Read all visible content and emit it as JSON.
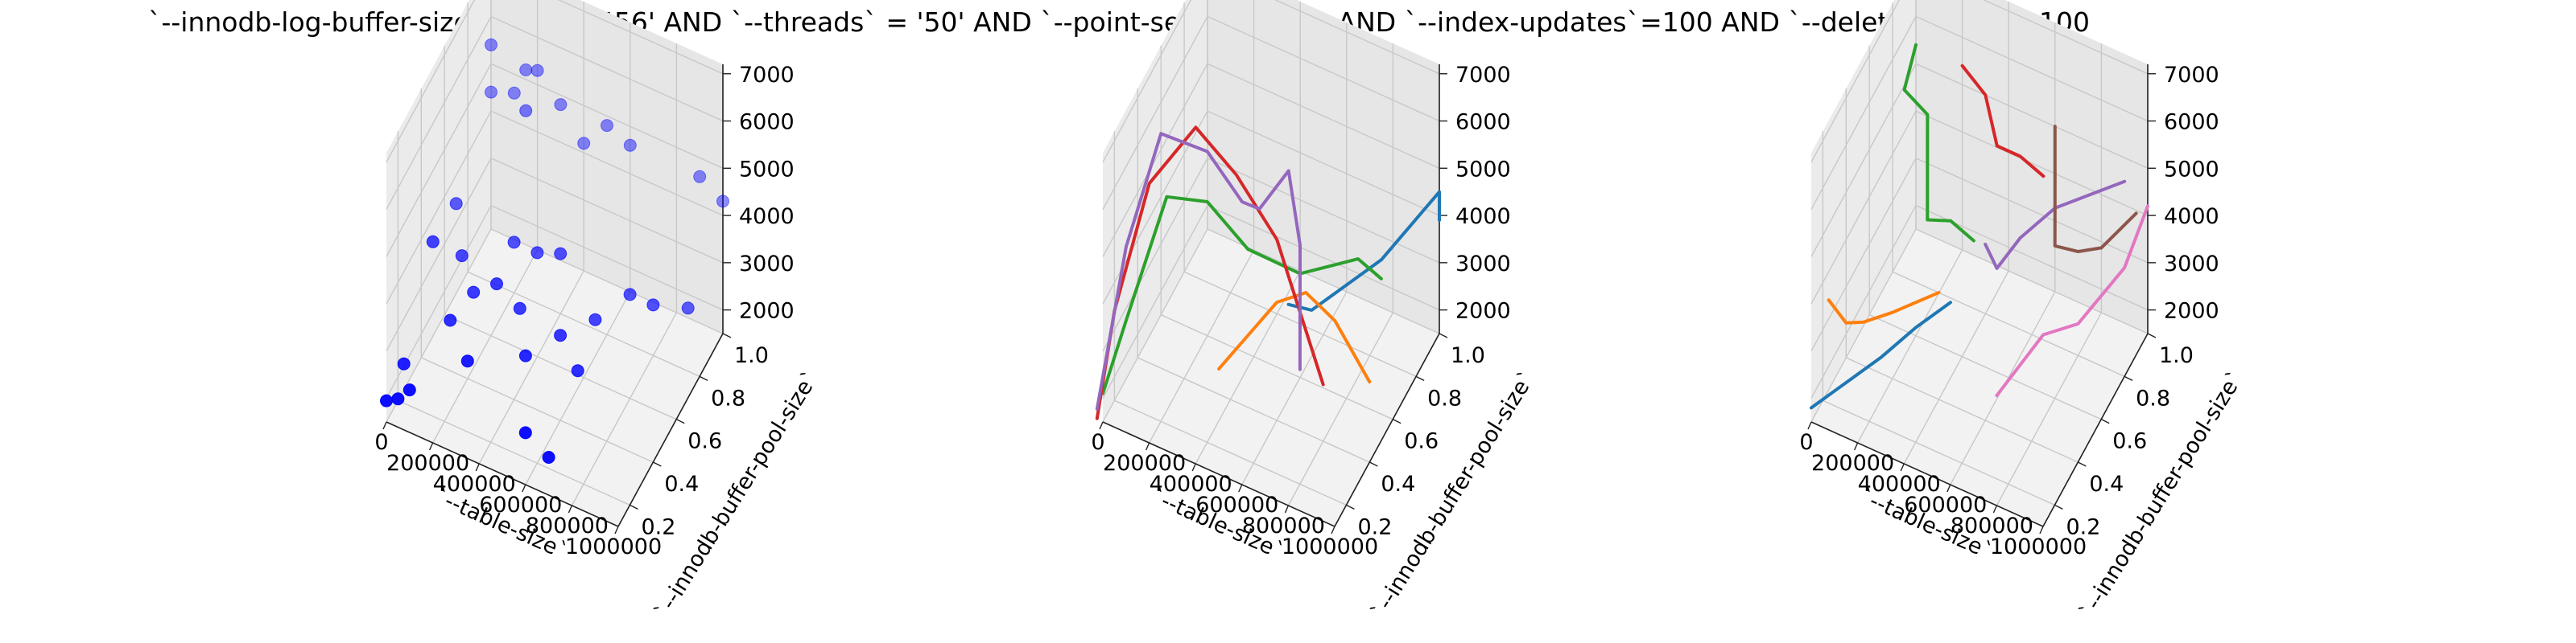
{
  "title": "`--innodb-log-buffer-size` = '6291456' AND `--threads` = '50'  AND `--point-selects`=100 AND `--index-updates`=100 AND `--delete-inserts`=100",
  "chart_data": [
    {
      "type": "scatter",
      "projection": "3d",
      "xlabel": "`--table-size`",
      "ylabel": "`--innodb-buffer-pool-size`",
      "zlabel": "",
      "xlim": [
        0,
        1000000
      ],
      "ylim": [
        0.1,
        1.0
      ],
      "zlim": [
        1500,
        7200
      ],
      "xticks": [
        "0",
        "200000",
        "400000",
        "600000",
        "800000",
        "1000000"
      ],
      "yticks": [
        "0.2",
        "0.4",
        "0.6",
        "0.8",
        "1.0"
      ],
      "zticks": [
        "2000",
        "3000",
        "4000",
        "5000",
        "6000",
        "7000"
      ],
      "grid": true,
      "series": [
        {
          "color": "#0000ff",
          "points": [
            {
              "x": 0,
              "y": 0.1,
              "z": 1950
            },
            {
              "x": 0,
              "y": 0.25,
              "z": 2050
            },
            {
              "x": 0,
              "y": 0.5,
              "z": 3500
            },
            {
              "x": 0,
              "y": 0.7,
              "z": 3400
            },
            {
              "x": 0,
              "y": 1.0,
              "z": 5400
            },
            {
              "x": 0,
              "y": 1.0,
              "z": 4400
            },
            {
              "x": 50000,
              "y": 0.1,
              "z": 2100
            },
            {
              "x": 100000,
              "y": 0.1,
              "z": 2400
            },
            {
              "x": 100000,
              "y": 0.55,
              "z": 3200
            },
            {
              "x": 100000,
              "y": 1.0,
              "z": 4600
            },
            {
              "x": 150000,
              "y": 0.35,
              "z": 2850
            },
            {
              "x": 150000,
              "y": 1.0,
              "z": 5200
            },
            {
              "x": 200000,
              "y": 0.45,
              "z": 3100
            },
            {
              "x": 200000,
              "y": 1.0,
              "z": 5300
            },
            {
              "x": 200000,
              "y": 0.9,
              "z": 4900
            },
            {
              "x": 300000,
              "y": 0.2,
              "z": 3000
            },
            {
              "x": 300000,
              "y": 0.45,
              "z": 3500
            },
            {
              "x": 300000,
              "y": 0.6,
              "z": 3700
            },
            {
              "x": 300000,
              "y": 1.0,
              "z": 4800
            },
            {
              "x": 400000,
              "y": 0.45,
              "z": 3200
            },
            {
              "x": 400000,
              "y": 0.6,
              "z": 3700
            },
            {
              "x": 400000,
              "y": 1.0,
              "z": 4200
            },
            {
              "x": 500000,
              "y": 0.3,
              "z": 3100
            },
            {
              "x": 500000,
              "y": 0.6,
              "z": 3900
            },
            {
              "x": 500000,
              "y": 1.0,
              "z": 4800
            },
            {
              "x": 600000,
              "y": 0.1,
              "z": 2600
            },
            {
              "x": 600000,
              "y": 0.4,
              "z": 3300
            },
            {
              "x": 600000,
              "y": 1.0,
              "z": 4600
            },
            {
              "x": 700000,
              "y": 0.1,
              "z": 2300
            },
            {
              "x": 700000,
              "y": 0.35,
              "z": 3000
            },
            {
              "x": 700000,
              "y": 0.5,
              "z": 3400
            },
            {
              "x": 800000,
              "y": 0.6,
              "z": 3700
            },
            {
              "x": 900000,
              "y": 0.6,
              "z": 3700
            },
            {
              "x": 900000,
              "y": 1.0,
              "z": 4600
            },
            {
              "x": 1000000,
              "y": 0.7,
              "z": 3400
            },
            {
              "x": 1000000,
              "y": 1.0,
              "z": 4300
            }
          ]
        }
      ]
    },
    {
      "type": "line",
      "projection": "3d",
      "xlabel": "`--table-size`",
      "ylabel": "`--innodb-buffer-pool-size`",
      "zlabel": "",
      "xlim": [
        0,
        1000000
      ],
      "ylim": [
        0.1,
        1.0
      ],
      "zlim": [
        1500,
        7200
      ],
      "xticks": [
        "0",
        "200000",
        "400000",
        "600000",
        "800000",
        "1000000"
      ],
      "yticks": [
        "0.2",
        "0.4",
        "0.6",
        "0.8",
        "1.0"
      ],
      "zticks": [
        "2000",
        "3000",
        "4000",
        "5000",
        "6000",
        "7000"
      ],
      "grid": true,
      "series": [
        {
          "color": "#1f77b4",
          "points": [
            {
              "x": 600000,
              "y": 0.5,
              "z": 3500
            },
            {
              "x": 700000,
              "y": 0.5,
              "z": 3600
            },
            {
              "x": 800000,
              "y": 0.6,
              "z": 3900
            },
            {
              "x": 900000,
              "y": 0.7,
              "z": 4200
            },
            {
              "x": 1000000,
              "y": 1.0,
              "z": 4500
            },
            {
              "x": 1000000,
              "y": 1.0,
              "z": 3900
            }
          ]
        },
        {
          "color": "#ff7f0e",
          "points": [
            {
              "x": 400000,
              "y": 0.3,
              "z": 2600
            },
            {
              "x": 500000,
              "y": 0.35,
              "z": 3300
            },
            {
              "x": 600000,
              "y": 0.4,
              "z": 4000
            },
            {
              "x": 700000,
              "y": 0.45,
              "z": 4200
            },
            {
              "x": 800000,
              "y": 0.5,
              "z": 3600
            },
            {
              "x": 1000000,
              "y": 0.4,
              "z": 3200
            }
          ]
        },
        {
          "color": "#2ca02c",
          "points": [
            {
              "x": 0,
              "y": 0.1,
              "z": 2100
            },
            {
              "x": 50000,
              "y": 0.2,
              "z": 3300
            },
            {
              "x": 100000,
              "y": 0.45,
              "z": 4900
            },
            {
              "x": 250000,
              "y": 0.5,
              "z": 4900
            },
            {
              "x": 400000,
              "y": 0.55,
              "z": 4000
            },
            {
              "x": 600000,
              "y": 0.6,
              "z": 3700
            },
            {
              "x": 800000,
              "y": 0.7,
              "z": 4000
            },
            {
              "x": 900000,
              "y": 0.7,
              "z": 3800
            }
          ]
        },
        {
          "color": "#d62728",
          "points": [
            {
              "x": 0,
              "y": 0.05,
              "z": 1800
            },
            {
              "x": 0,
              "y": 0.2,
              "z": 3400
            },
            {
              "x": 50000,
              "y": 0.4,
              "z": 5300
            },
            {
              "x": 150000,
              "y": 0.6,
              "z": 5800
            },
            {
              "x": 300000,
              "y": 0.65,
              "z": 4900
            },
            {
              "x": 500000,
              "y": 0.6,
              "z": 4200
            },
            {
              "x": 600000,
              "y": 0.5,
              "z": 4100
            },
            {
              "x": 800000,
              "y": 0.4,
              "z": 2700
            }
          ]
        },
        {
          "color": "#9467bd",
          "points": [
            {
              "x": 0,
              "y": 0.05,
              "z": 2000
            },
            {
              "x": 0,
              "y": 0.3,
              "z": 4300
            },
            {
              "x": 50000,
              "y": 0.5,
              "z": 5900
            },
            {
              "x": 200000,
              "y": 0.6,
              "z": 5400
            },
            {
              "x": 300000,
              "y": 0.7,
              "z": 4100
            },
            {
              "x": 400000,
              "y": 0.65,
              "z": 4400
            },
            {
              "x": 500000,
              "y": 0.7,
              "z": 5200
            },
            {
              "x": 600000,
              "y": 0.6,
              "z": 4300
            },
            {
              "x": 700000,
              "y": 0.4,
              "z": 2800
            }
          ]
        }
      ]
    },
    {
      "type": "line",
      "projection": "3d",
      "xlabel": "`--table-size`",
      "ylabel": "`--innodb-buffer-pool-size`",
      "zlabel": "",
      "xlim": [
        0,
        1000000
      ],
      "ylim": [
        0.1,
        1.0
      ],
      "zlim": [
        1500,
        7200
      ],
      "xticks": [
        "0",
        "200000",
        "400000",
        "600000",
        "800000",
        "1000000"
      ],
      "yticks": [
        "0.2",
        "0.4",
        "0.6",
        "0.8",
        "1.0"
      ],
      "zticks": [
        "2000",
        "3000",
        "4000",
        "5000",
        "6000",
        "7000"
      ],
      "grid": true,
      "series": [
        {
          "color": "#1f77b4",
          "points": [
            {
              "x": 0,
              "y": 0.1,
              "z": 1800
            },
            {
              "x": 100000,
              "y": 0.2,
              "z": 2100
            },
            {
              "x": 200000,
              "y": 0.3,
              "z": 2400
            },
            {
              "x": 300000,
              "y": 0.4,
              "z": 2800
            },
            {
              "x": 400000,
              "y": 0.5,
              "z": 3100
            }
          ]
        },
        {
          "color": "#ff7f0e",
          "points": [
            {
              "x": 0,
              "y": 0.25,
              "z": 3400
            },
            {
              "x": 50000,
              "y": 0.3,
              "z": 2800
            },
            {
              "x": 100000,
              "y": 0.35,
              "z": 2700
            },
            {
              "x": 200000,
              "y": 0.4,
              "z": 2900
            },
            {
              "x": 350000,
              "y": 0.5,
              "z": 3200
            }
          ]
        },
        {
          "color": "#2ca02c",
          "points": [
            {
              "x": 0,
              "y": 1.0,
              "z": 5400
            },
            {
              "x": 0,
              "y": 0.9,
              "z": 4900
            },
            {
              "x": 100000,
              "y": 0.9,
              "z": 4600
            },
            {
              "x": 200000,
              "y": 0.7,
              "z": 3500
            },
            {
              "x": 300000,
              "y": 0.7,
              "z": 3700
            },
            {
              "x": 400000,
              "y": 0.7,
              "z": 3500
            }
          ]
        },
        {
          "color": "#d62728",
          "points": [
            {
              "x": 200000,
              "y": 1.0,
              "z": 5400
            },
            {
              "x": 300000,
              "y": 1.0,
              "z": 5000
            },
            {
              "x": 400000,
              "y": 0.9,
              "z": 4600
            },
            {
              "x": 500000,
              "y": 0.9,
              "z": 4600
            },
            {
              "x": 600000,
              "y": 0.9,
              "z": 4400
            }
          ]
        },
        {
          "color": "#9467bd",
          "points": [
            {
              "x": 500000,
              "y": 0.6,
              "z": 4100
            },
            {
              "x": 550000,
              "y": 0.6,
              "z": 3700
            },
            {
              "x": 600000,
              "y": 0.7,
              "z": 4000
            },
            {
              "x": 700000,
              "y": 0.8,
              "z": 4400
            },
            {
              "x": 900000,
              "y": 1.0,
              "z": 4500
            }
          ]
        },
        {
          "color": "#8c564b",
          "points": [
            {
              "x": 600000,
              "y": 1.0,
              "z": 5000
            },
            {
              "x": 650000,
              "y": 0.9,
              "z": 4000
            },
            {
              "x": 700000,
              "y": 0.8,
              "z": 3600
            },
            {
              "x": 800000,
              "y": 0.8,
              "z": 3700
            },
            {
              "x": 900000,
              "y": 0.8,
              "z": 4000
            },
            {
              "x": 1000000,
              "y": 0.9,
              "z": 4500
            }
          ]
        },
        {
          "color": "#e377c2",
          "points": [
            {
              "x": 700000,
              "y": 0.3,
              "z": 2700
            },
            {
              "x": 750000,
              "y": 0.4,
              "z": 3000
            },
            {
              "x": 800000,
              "y": 0.5,
              "z": 3300
            },
            {
              "x": 900000,
              "y": 0.6,
              "z": 3300
            },
            {
              "x": 1000000,
              "y": 0.8,
              "z": 3800
            },
            {
              "x": 1000000,
              "y": 1.0,
              "z": 4200
            }
          ]
        }
      ]
    }
  ]
}
